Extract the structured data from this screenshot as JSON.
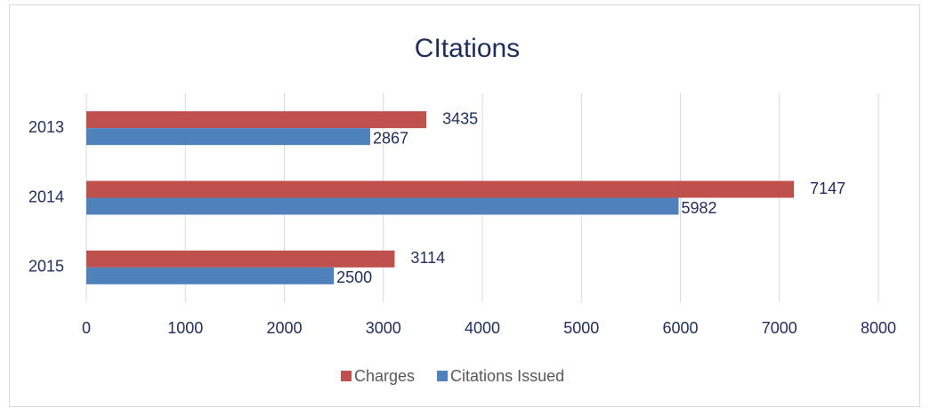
{
  "chart_data": {
    "type": "bar",
    "orientation": "horizontal",
    "title": "CItations",
    "categories": [
      "2013",
      "2014",
      "2015"
    ],
    "series": [
      {
        "name": "Charges",
        "color": "#c0504d",
        "values": [
          3435,
          7147,
          3114
        ]
      },
      {
        "name": "Citations Issued",
        "color": "#4f81bd",
        "values": [
          2867,
          5982,
          2500
        ]
      }
    ],
    "xlim": [
      0,
      8000
    ],
    "xticks": [
      0,
      1000,
      2000,
      3000,
      4000,
      5000,
      6000,
      7000,
      8000
    ],
    "grid": true,
    "legend": "bottom"
  }
}
